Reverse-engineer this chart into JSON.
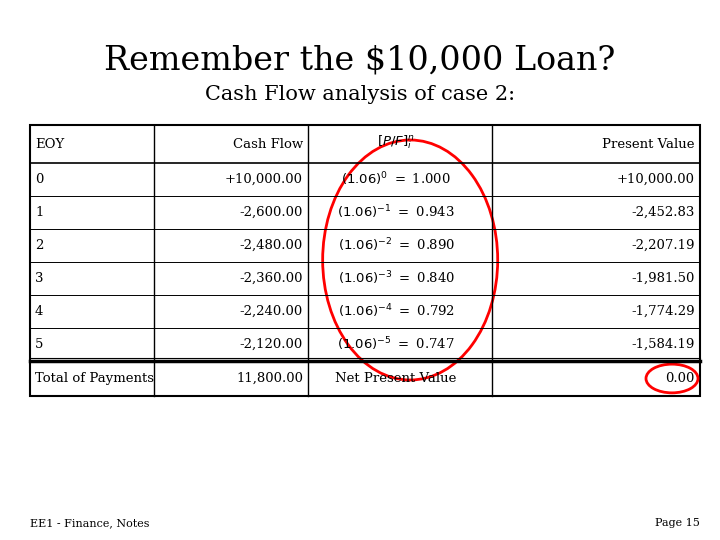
{
  "title": "Remember the $10,000 Loan?",
  "subtitle": "Cash Flow analysis of case 2:",
  "title_fontsize": 24,
  "subtitle_fontsize": 15,
  "background_color": "#ffffff",
  "footer_left": "EE1 - Finance, Notes",
  "footer_right": "Page 15",
  "table": {
    "headers": [
      "EOY",
      "Cash Flow",
      "[P/F]^n_i",
      "Present Value"
    ],
    "rows": [
      [
        "0",
        "+10,000.00",
        "0",
        "1.000",
        "+10,000.00"
      ],
      [
        "1",
        "-2,600.00",
        "-1",
        "0.943",
        "-2,452.83"
      ],
      [
        "2",
        "-2,480.00",
        "-2",
        "0.890",
        "-2,207.19"
      ],
      [
        "3",
        "-2,360.00",
        "-3",
        "0.840",
        "-1,981.50"
      ],
      [
        "4",
        "-2,240.00",
        "-4",
        "0.792",
        "-1,774.29"
      ],
      [
        "5",
        "-2,120.00",
        "-5",
        "0.747",
        "-1,584.19"
      ]
    ],
    "footer_row": [
      "Total of Payments",
      "11,800.00",
      "Net Present Value",
      "0.00"
    ]
  }
}
